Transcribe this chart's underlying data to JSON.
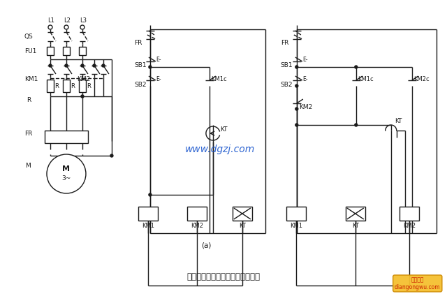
{
  "bg_color": "#ffffff",
  "line_color": "#1a1a1a",
  "watermark_color": "#1a56cd",
  "watermark_text": "www.dgzj.com",
  "title_text": "定子电路串电阔降压启动控制线路",
  "brand_text": "电工之屋\ndiangongwu.com",
  "lw": 1.0,
  "fig_w": 6.4,
  "fig_h": 4.24,
  "dpi": 100
}
